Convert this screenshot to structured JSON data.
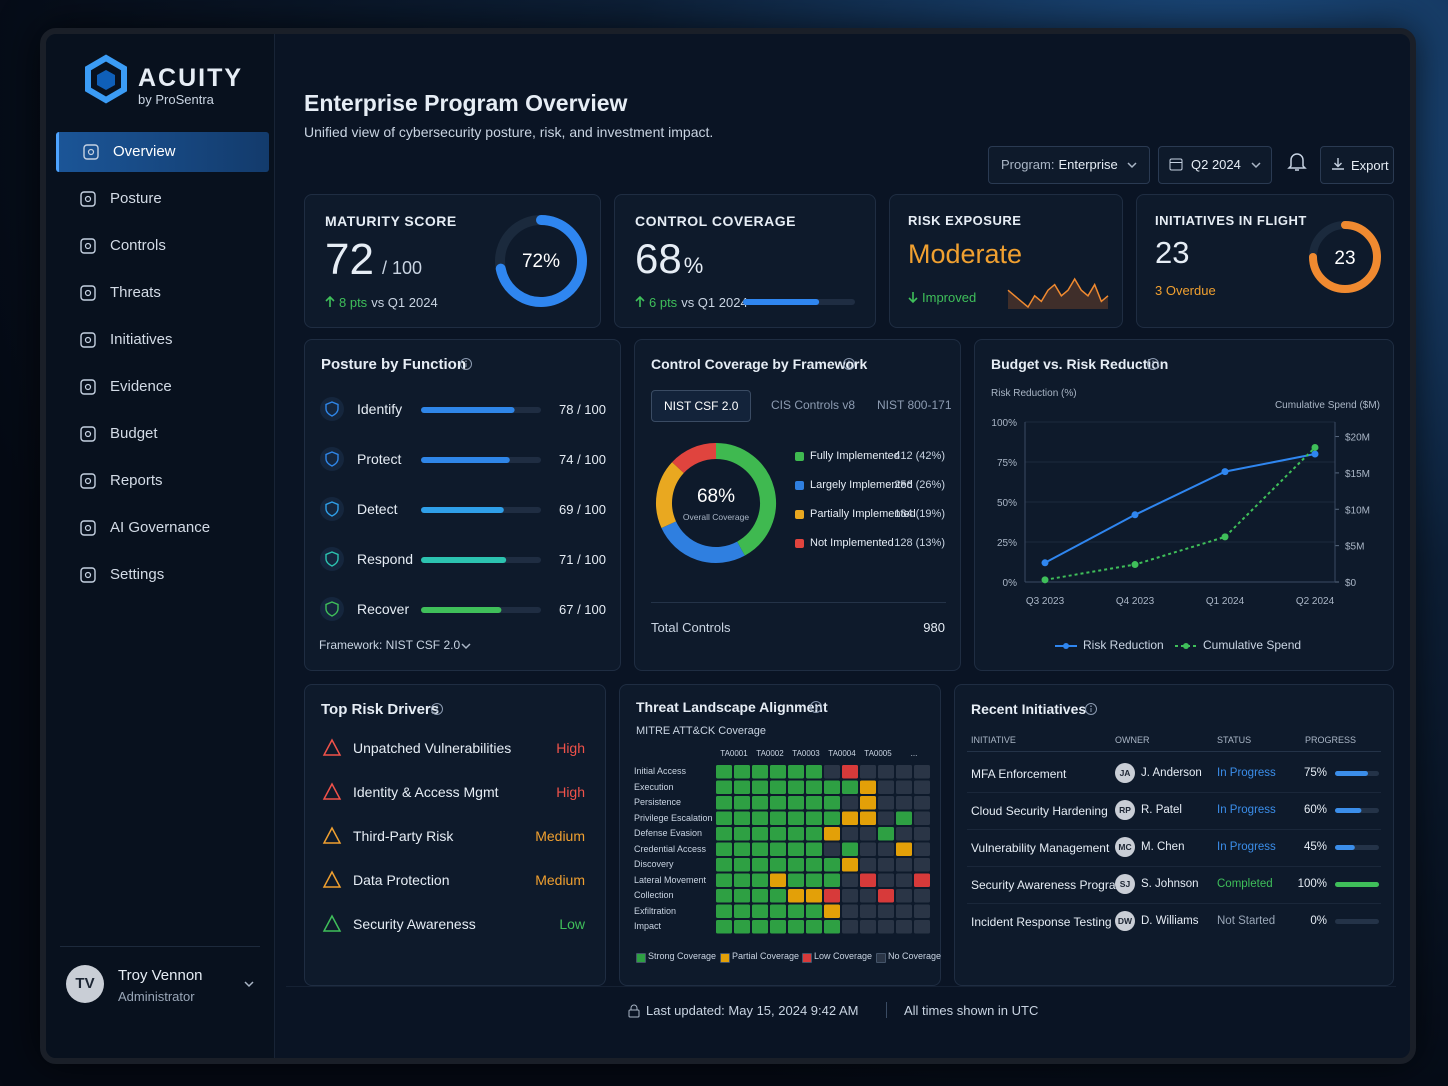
{
  "brand": {
    "name": "ACUITY",
    "sub": "by ProSentra"
  },
  "nav": [
    {
      "label": "Overview",
      "active": true
    },
    {
      "label": "Posture"
    },
    {
      "label": "Controls"
    },
    {
      "label": "Threats"
    },
    {
      "label": "Initiatives"
    },
    {
      "label": "Evidence"
    },
    {
      "label": "Budget"
    },
    {
      "label": "Reports"
    },
    {
      "label": "AI Governance"
    },
    {
      "label": "Settings"
    }
  ],
  "user": {
    "initials": "TV",
    "name": "Troy Vennon",
    "role": "Administrator"
  },
  "header": {
    "title": "Enterprise Program Overview",
    "subtitle": "Unified view of cybersecurity posture, risk, and investment impact.",
    "program_label": "Program:",
    "program": "Enterprise",
    "period": "Q2 2024",
    "export": "Export"
  },
  "kpis": {
    "maturity": {
      "title": "MATURITY SCORE",
      "score": 72,
      "max": 100,
      "max_label": "/ 100",
      "ring_label": "72%",
      "delta": "8 pts",
      "delta_note": "vs Q1 2024"
    },
    "coverage": {
      "title": "CONTROL COVERAGE",
      "value": 68,
      "unit": "%",
      "delta": "6 pts",
      "delta_note": "vs Q1 2024"
    },
    "risk": {
      "title": "RISK EXPOSURE",
      "value": "Moderate",
      "trend": "Improved",
      "sparkline": [
        6,
        5,
        4,
        3,
        5,
        4,
        6,
        7,
        5,
        6,
        8,
        6,
        5,
        7,
        4,
        5
      ]
    },
    "initiatives": {
      "title": "INITIATIVES IN FLIGHT",
      "value": 23,
      "overdue": "3 Overdue",
      "ring_progress": 75
    }
  },
  "posture": {
    "title": "Posture by Function",
    "max": 100,
    "rows": [
      {
        "name": "Identify",
        "value": 78,
        "value_label": "78 / 100",
        "color": "#2f86e8"
      },
      {
        "name": "Protect",
        "value": 74,
        "value_label": "74 / 100",
        "color": "#2f86e8"
      },
      {
        "name": "Detect",
        "value": 69,
        "value_label": "69 / 100",
        "color": "#2f9fe8"
      },
      {
        "name": "Respond",
        "value": 71,
        "value_label": "71 / 100",
        "color": "#2cc3b0"
      },
      {
        "name": "Recover",
        "value": 67,
        "value_label": "67 / 100",
        "color": "#3fbf5a"
      }
    ],
    "framework": "Framework: NIST CSF 2.0"
  },
  "framework_chart": {
    "title": "Control Coverage by Framework",
    "tabs": [
      "NIST CSF 2.0",
      "CIS Controls v8",
      "NIST 800-171"
    ],
    "center": "68%",
    "center_sub": "Overall Coverage",
    "segments": [
      {
        "name": "Fully Implemented",
        "value": 412,
        "value_label": "412 (42%)",
        "color": "#3fb950"
      },
      {
        "name": "Largely Implemented",
        "value": 256,
        "value_label": "256 (26%)",
        "color": "#2f7fe0"
      },
      {
        "name": "Partially Implemented",
        "value": 184,
        "value_label": "184 (19%)",
        "color": "#e9a820"
      },
      {
        "name": "Not Implemented",
        "value": 128,
        "value_label": "128 (13%)",
        "color": "#e0443e"
      }
    ],
    "total_label": "Total Controls",
    "total": 980
  },
  "budget_chart": {
    "type": "line",
    "title": "Budget vs. Risk Reduction",
    "y_label": "Risk Reduction (%)",
    "y2_label": "Cumulative Spend ($M)",
    "x": [
      "Q3 2023",
      "Q4 2023",
      "Q1 2024",
      "Q2 2024"
    ],
    "ylim": [
      0,
      100
    ],
    "yticks": [
      {
        "value": 0,
        "label": "0%"
      },
      {
        "value": 25,
        "label": "25%"
      },
      {
        "value": 50,
        "label": "50%"
      },
      {
        "value": 75,
        "label": "75%"
      },
      {
        "value": 100,
        "label": "100%"
      }
    ],
    "y2lim": [
      0,
      22
    ],
    "y2ticks": [
      {
        "value": 0,
        "label": "$0"
      },
      {
        "value": 5,
        "label": "$5M"
      },
      {
        "value": 10,
        "label": "$10M"
      },
      {
        "value": 15,
        "label": "$15M"
      },
      {
        "value": 20,
        "label": "$20M"
      }
    ],
    "series": [
      {
        "name": "Risk Reduction",
        "color": "#2f86f0",
        "values": [
          12,
          42,
          69,
          80
        ]
      },
      {
        "name": "Cumulative Spend",
        "color": "#3fbf5a",
        "axis": "y2",
        "values": [
          0.3,
          2.4,
          6.2,
          18.5
        ]
      }
    ]
  },
  "risk_drivers": {
    "title": "Top Risk Drivers",
    "rows": [
      {
        "name": "Unpatched Vulnerabilities",
        "level": "High",
        "color": "#f0524a"
      },
      {
        "name": "Identity & Access Mgmt",
        "level": "High",
        "color": "#f0524a"
      },
      {
        "name": "Third-Party Risk",
        "level": "Medium",
        "color": "#f0a030"
      },
      {
        "name": "Data Protection",
        "level": "Medium",
        "color": "#f0a030"
      },
      {
        "name": "Security Awareness",
        "level": "Low",
        "color": "#3fbf5a"
      }
    ]
  },
  "threat": {
    "title": "Threat Landscape Alignment",
    "subtitle": "MITRE ATT&CK Coverage",
    "columns": [
      "TA0001",
      "TA0002",
      "TA0003",
      "TA0004",
      "TA0005",
      "..."
    ],
    "rows": [
      "Initial Access",
      "Execution",
      "Persistence",
      "Privilege Escalation",
      "Defense Evasion",
      "Credential Access",
      "Discovery",
      "Lateral Movement",
      "Collection",
      "Exfiltration",
      "Impact"
    ],
    "legend": [
      {
        "name": "Strong Coverage",
        "color": "#2ea043"
      },
      {
        "name": "Partial Coverage",
        "color": "#e3a008"
      },
      {
        "name": "Low Coverage",
        "color": "#d73a3a"
      },
      {
        "name": "No Coverage",
        "color": "#2a3546"
      }
    ],
    "cells": [
      [
        0,
        0,
        0,
        0,
        0,
        0,
        3,
        2,
        3,
        3,
        3,
        3
      ],
      [
        0,
        0,
        0,
        0,
        0,
        0,
        0,
        0,
        1,
        3,
        3,
        3
      ],
      [
        0,
        0,
        0,
        0,
        0,
        0,
        0,
        3,
        1,
        3,
        3,
        3
      ],
      [
        0,
        0,
        0,
        0,
        0,
        0,
        0,
        1,
        1,
        3,
        0,
        3
      ],
      [
        0,
        0,
        0,
        0,
        0,
        0,
        1,
        3,
        3,
        0,
        3,
        3
      ],
      [
        0,
        0,
        0,
        0,
        0,
        0,
        3,
        0,
        3,
        3,
        1,
        3
      ],
      [
        0,
        0,
        0,
        0,
        0,
        0,
        0,
        1,
        3,
        3,
        3,
        3
      ],
      [
        0,
        0,
        0,
        1,
        0,
        0,
        0,
        3,
        2,
        3,
        3,
        2
      ],
      [
        0,
        0,
        0,
        0,
        1,
        1,
        2,
        3,
        3,
        2,
        3,
        3
      ],
      [
        0,
        0,
        0,
        0,
        0,
        0,
        1,
        3,
        3,
        3,
        3,
        3
      ],
      [
        0,
        0,
        0,
        0,
        0,
        0,
        0,
        3,
        3,
        3,
        3,
        3
      ]
    ]
  },
  "initiatives_table": {
    "title": "Recent Initiatives",
    "columns": [
      "INITIATIVE",
      "OWNER",
      "STATUS",
      "PROGRESS"
    ],
    "rows": [
      {
        "name": "MFA Enforcement",
        "initials": "JA",
        "owner": "J. Anderson",
        "status": "In Progress",
        "status_color": "#3b8eea",
        "progress": 75,
        "progress_label": "75%"
      },
      {
        "name": "Cloud Security Hardening",
        "initials": "RP",
        "owner": "R. Patel",
        "status": "In Progress",
        "status_color": "#3b8eea",
        "progress": 60,
        "progress_label": "60%"
      },
      {
        "name": "Vulnerability Management",
        "initials": "MC",
        "owner": "M. Chen",
        "status": "In Progress",
        "status_color": "#3b8eea",
        "progress": 45,
        "progress_label": "45%"
      },
      {
        "name": "Security Awareness Program",
        "initials": "SJ",
        "owner": "S. Johnson",
        "status": "Completed",
        "status_color": "#3fbf5a",
        "progress": 100,
        "progress_label": "100%"
      },
      {
        "name": "Incident Response Testing",
        "initials": "DW",
        "owner": "D. Williams",
        "status": "Not Started",
        "status_color": "#9aa7b8",
        "progress": 0,
        "progress_label": "0%"
      }
    ]
  },
  "footer": {
    "updated": "Last updated: May 15, 2024 9:42 AM",
    "timezone": "All times shown in UTC"
  }
}
